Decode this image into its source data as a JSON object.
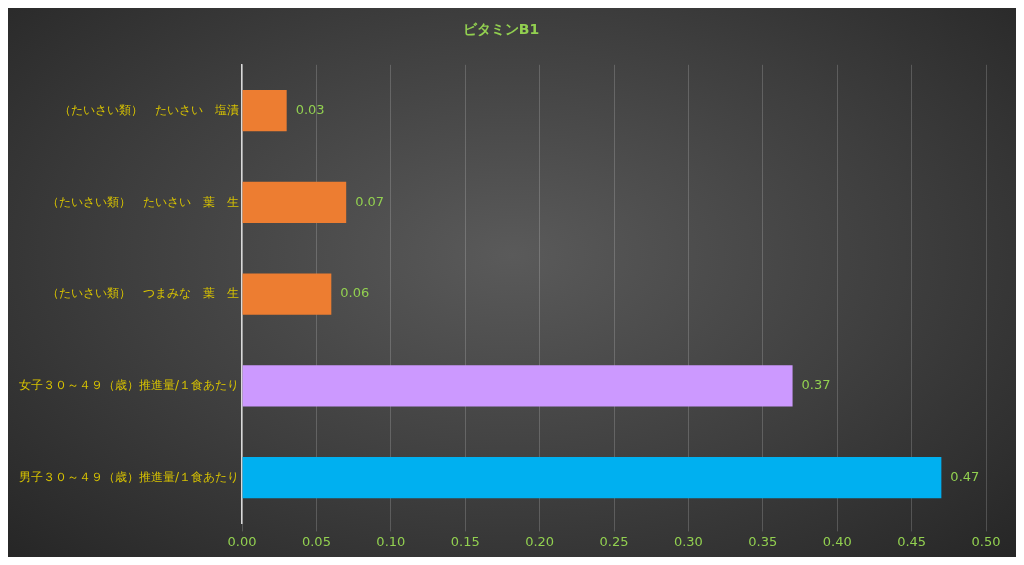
{
  "chart_data": {
    "type": "bar",
    "orientation": "horizontal",
    "title": "ビタミンB1",
    "categories": [
      "（たいさい類）　たいさい　塩漬",
      "（たいさい類）　たいさい　葉　生",
      "（たいさい類）　つまみな　葉　生",
      "女子３０～４９（歳）推進量/１食あたり",
      "男子３０～４９（歳）推進量/１食あたり"
    ],
    "values": [
      0.03,
      0.07,
      0.06,
      0.37,
      0.47
    ],
    "colors": [
      "#ed7d31",
      "#ed7d31",
      "#ed7d31",
      "#cc99ff",
      "#00b0f0"
    ],
    "xlim": [
      0,
      0.5
    ],
    "xticks": [
      {
        "value": 0,
        "label": "0.00"
      },
      {
        "value": 0.05,
        "label": "0.05"
      },
      {
        "value": 0.1,
        "label": "0.10"
      },
      {
        "value": 0.15,
        "label": "0.15"
      },
      {
        "value": 0.2,
        "label": "0.20"
      },
      {
        "value": 0.25,
        "label": "0.25"
      },
      {
        "value": 0.3,
        "label": "0.30"
      },
      {
        "value": 0.35,
        "label": "0.35"
      },
      {
        "value": 0.4,
        "label": "0.40"
      },
      {
        "value": 0.45,
        "label": "0.45"
      },
      {
        "value": 0.5,
        "label": "0.50"
      }
    ],
    "grid": "x",
    "data_labels": true,
    "legend": false
  }
}
